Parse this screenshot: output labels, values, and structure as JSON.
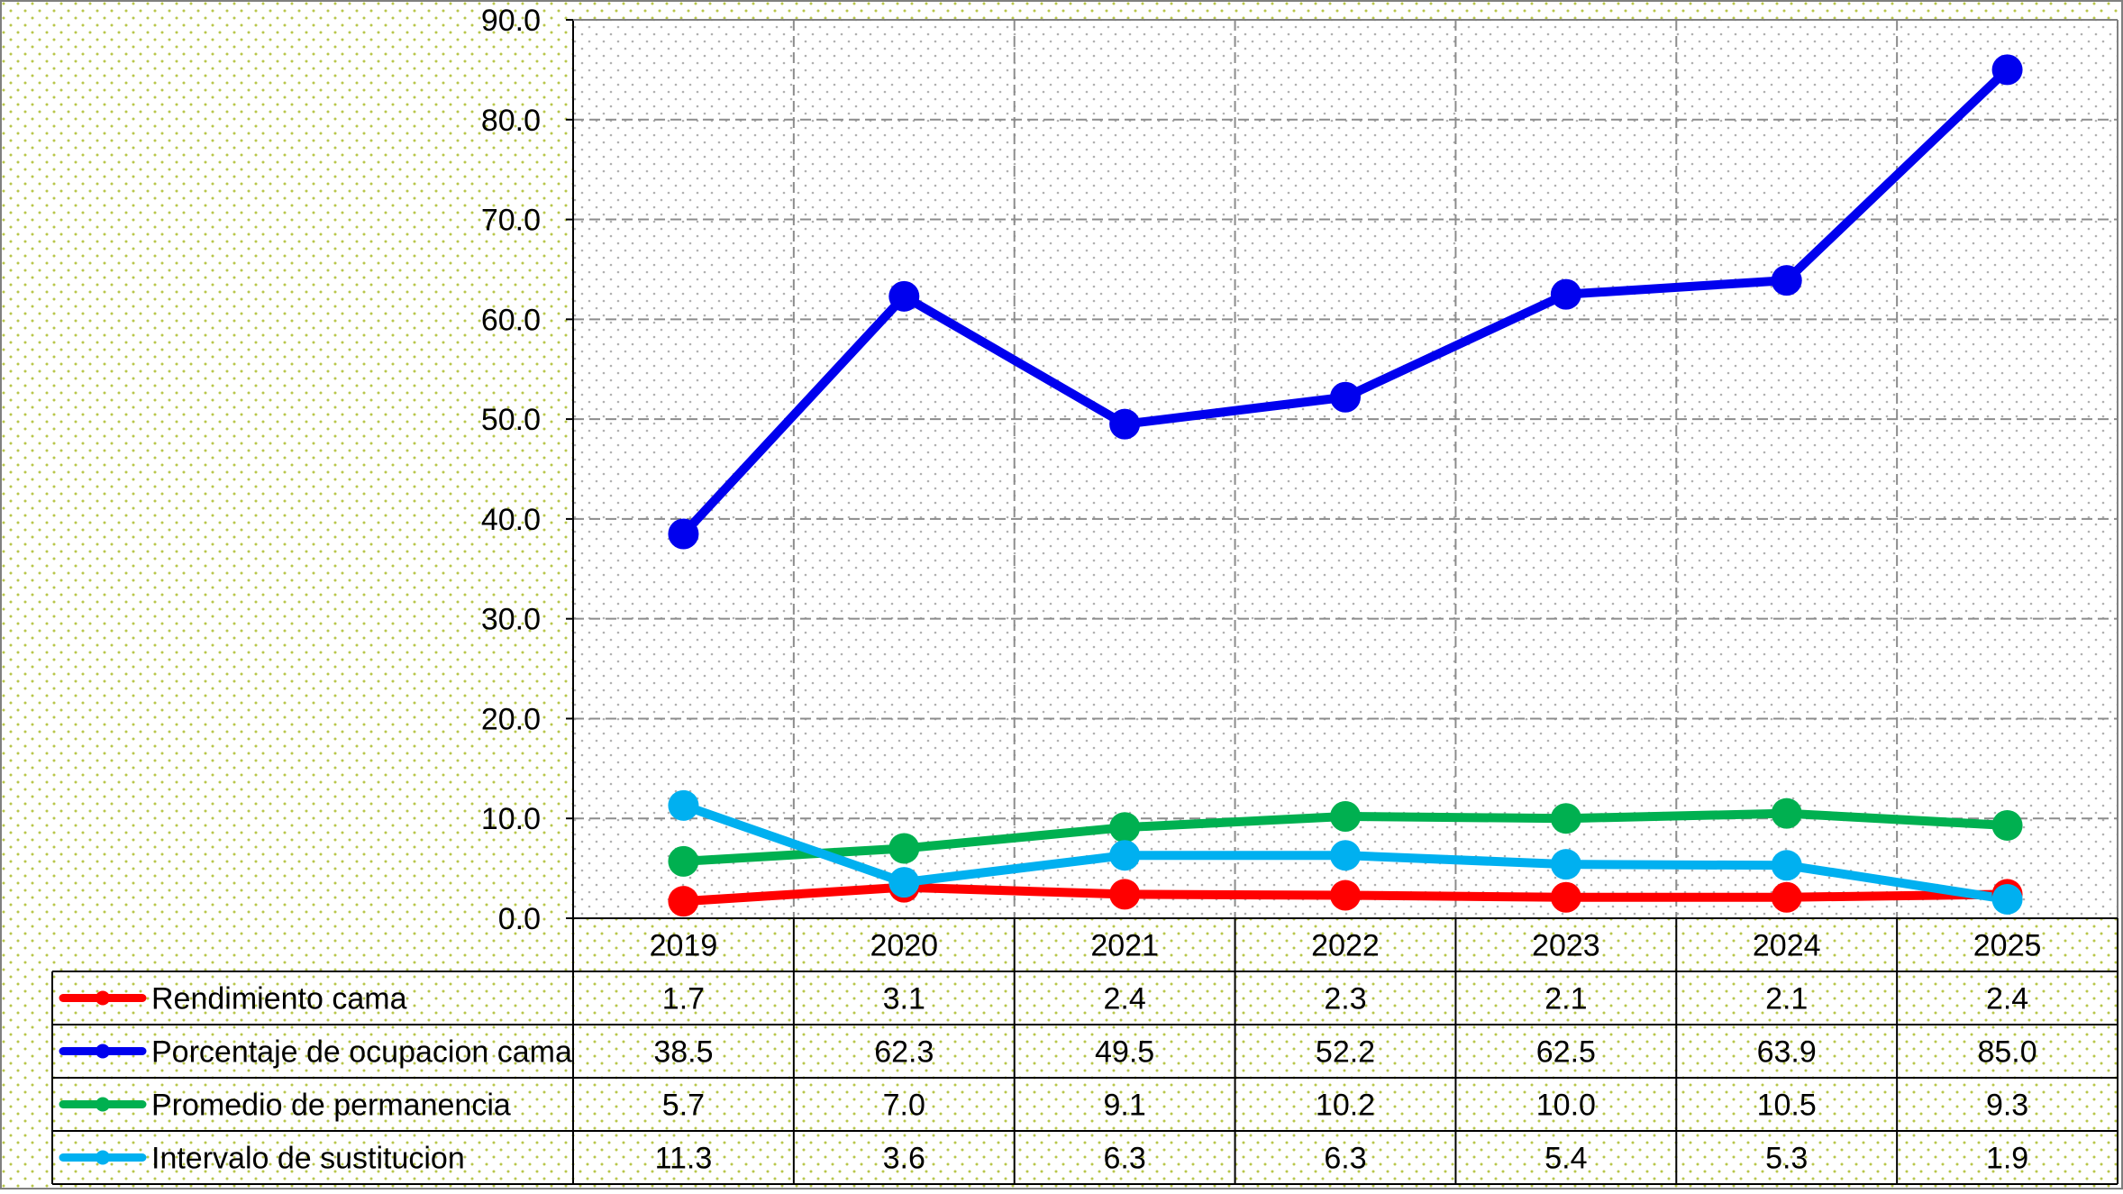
{
  "chart_data": {
    "type": "line",
    "title": "",
    "xlabel": "",
    "ylabel": "",
    "categories": [
      "2019",
      "2020",
      "2021",
      "2022",
      "2023",
      "2024",
      "2025"
    ],
    "ylim": [
      0,
      90
    ],
    "yticks": [
      "0.0",
      "10.0",
      "20.0",
      "30.0",
      "40.0",
      "50.0",
      "60.0",
      "70.0",
      "80.0",
      "90.0"
    ],
    "grid": true,
    "legend": "data-table-below",
    "series": [
      {
        "name": "Rendimiento cama",
        "color": "#ff0000",
        "values": [
          1.7,
          3.1,
          2.4,
          2.3,
          2.1,
          2.1,
          2.4
        ],
        "labels": [
          "1.7",
          "3.1",
          "2.4",
          "2.3",
          "2.1",
          "2.1",
          "2.4"
        ]
      },
      {
        "name": "Porcentaje de ocupacion cama",
        "color": "#0000ee",
        "values": [
          38.5,
          62.3,
          49.5,
          52.2,
          62.5,
          63.9,
          85.0
        ],
        "labels": [
          "38.5",
          "62.3",
          "49.5",
          "52.2",
          "62.5",
          "63.9",
          "85.0"
        ]
      },
      {
        "name": "Promedio de permanencia",
        "color": "#00b050",
        "values": [
          5.7,
          7.0,
          9.1,
          10.2,
          10.0,
          10.5,
          9.3
        ],
        "labels": [
          "5.7",
          "7.0",
          "9.1",
          "10.2",
          "10.0",
          "10.5",
          "9.3"
        ]
      },
      {
        "name": "Intervalo de sustitucion",
        "color": "#00b0f0",
        "values": [
          11.3,
          3.6,
          6.3,
          6.3,
          5.4,
          5.3,
          1.9
        ],
        "labels": [
          "11.3",
          "3.6",
          "6.3",
          "6.3",
          "5.4",
          "5.3",
          "1.9"
        ]
      }
    ]
  }
}
